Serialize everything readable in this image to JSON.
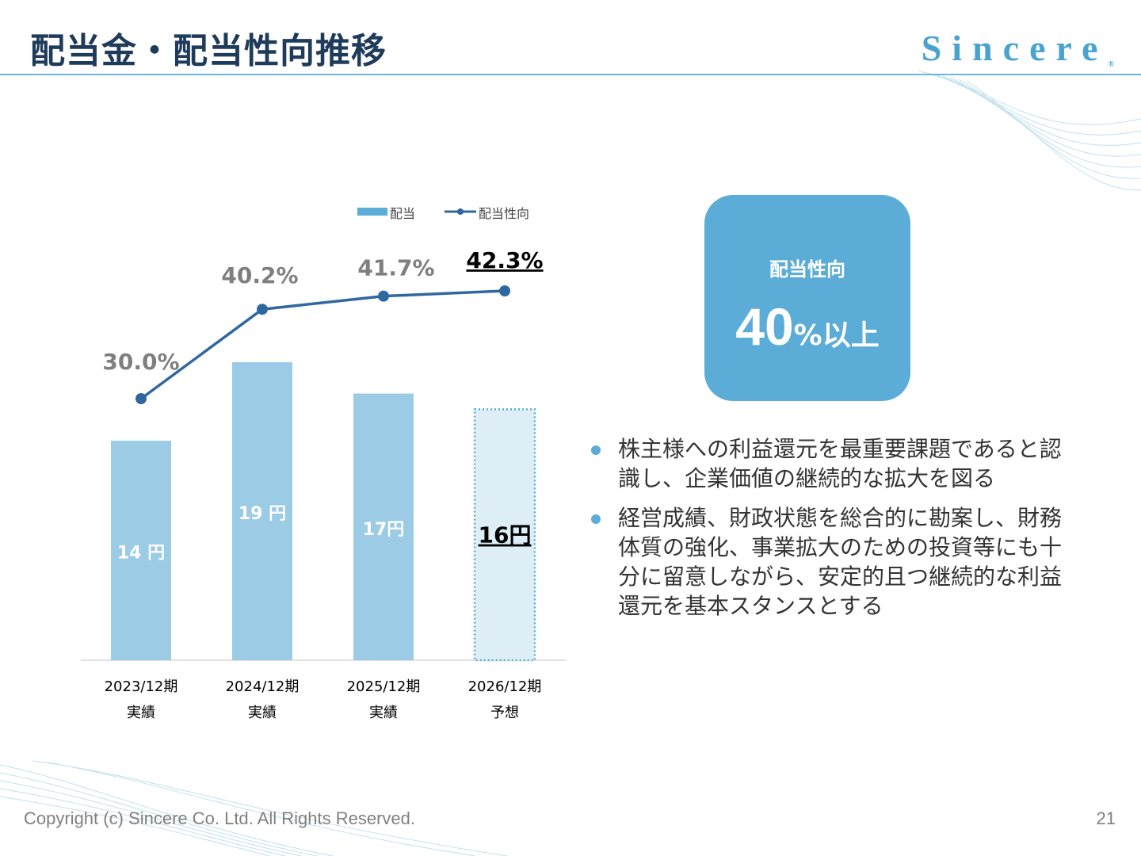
{
  "header": {
    "title": "配当金・配当性向推移",
    "logo_text": "Sincere",
    "logo_mark": "®",
    "accent_color": "#6bb6dc"
  },
  "chart_data": {
    "type": "bar",
    "legend": {
      "bar": "配当",
      "line": "配当性向",
      "placement": "top"
    },
    "categories": [
      {
        "period": "2023/12期",
        "status": "実績"
      },
      {
        "period": "2024/12期",
        "status": "実績"
      },
      {
        "period": "2025/12期",
        "status": "実績"
      },
      {
        "period": "2026/12期",
        "status": "予想"
      }
    ],
    "series": [
      {
        "name": "配当",
        "kind": "bar",
        "values": [
          14,
          19,
          17,
          16
        ],
        "labels": [
          "14 円",
          "19 円",
          "17円",
          "16円"
        ],
        "color": "#9ccbe6",
        "forecast_color": "#ddeef7"
      },
      {
        "name": "配当性向",
        "kind": "line",
        "values": [
          30.0,
          40.2,
          41.7,
          42.3
        ],
        "labels": [
          "30.0%",
          "40.2%",
          "41.7%",
          "42.3%"
        ],
        "color": "#2f68a0"
      }
    ],
    "forecast_index": 3
  },
  "callout": {
    "title": "配当性向",
    "value_number": "40",
    "value_suffix": "%以上",
    "color": "#5bacd6"
  },
  "bullets": [
    "株主様への利益還元を最重要課題であると認識し、企業価値の継続的な拡大を図る",
    "経営成績、財政状態を総合的に勘案し、財務体質の強化、事業拡大のための投資等にも十分に留意しながら、安定的且つ継続的な利益還元を基本スタンスとする"
  ],
  "footer": {
    "copyright": "Copyright (c) Sincere Co. Ltd. All Rights Reserved.",
    "page_number": "21"
  }
}
